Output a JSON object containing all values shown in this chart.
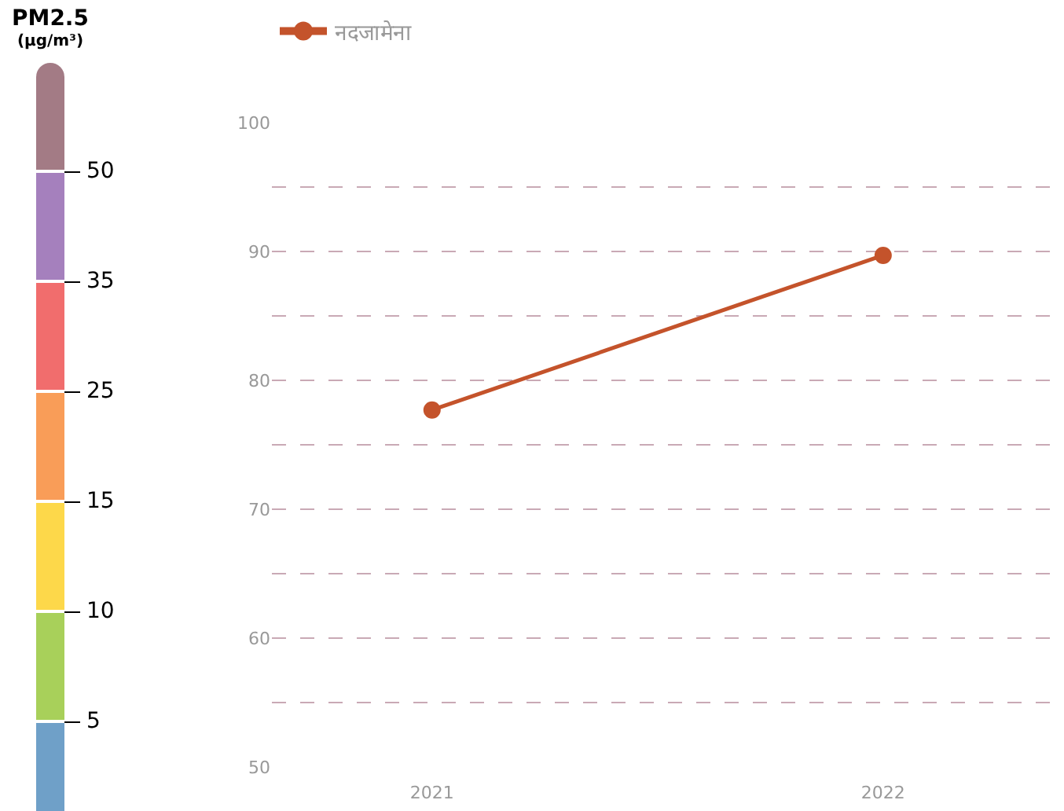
{
  "chart_data": [
    {
      "type": "other",
      "title": "PM2.5",
      "subtitle": "(µg/m³)",
      "colors": [
        "#6fa0c8",
        "#a8d05a",
        "#fdd84a",
        "#f99d58",
        "#f16d6d",
        "#a580bd",
        "#a37b85"
      ],
      "annotations": [
        "5",
        "10",
        "15",
        "25",
        "35",
        "50"
      ]
    },
    {
      "type": "line",
      "categories": [
        "2021",
        "2022"
      ],
      "series": [
        {
          "name": "नदजामेना",
          "color": "#c4532b",
          "values": [
            77.7,
            89.7
          ]
        }
      ],
      "ylim": [
        50,
        100
      ],
      "yticks": [
        50,
        {
          "value": 55,
          "label": null
        },
        60,
        {
          "value": 65,
          "label": null
        },
        70,
        {
          "value": 75,
          "label": null
        },
        80,
        {
          "value": 85,
          "label": null
        },
        90,
        {
          "value": 95,
          "label": null
        },
        100
      ],
      "grid": "y",
      "line_style": "solid",
      "marker": "circle",
      "legend": "top left"
    }
  ]
}
